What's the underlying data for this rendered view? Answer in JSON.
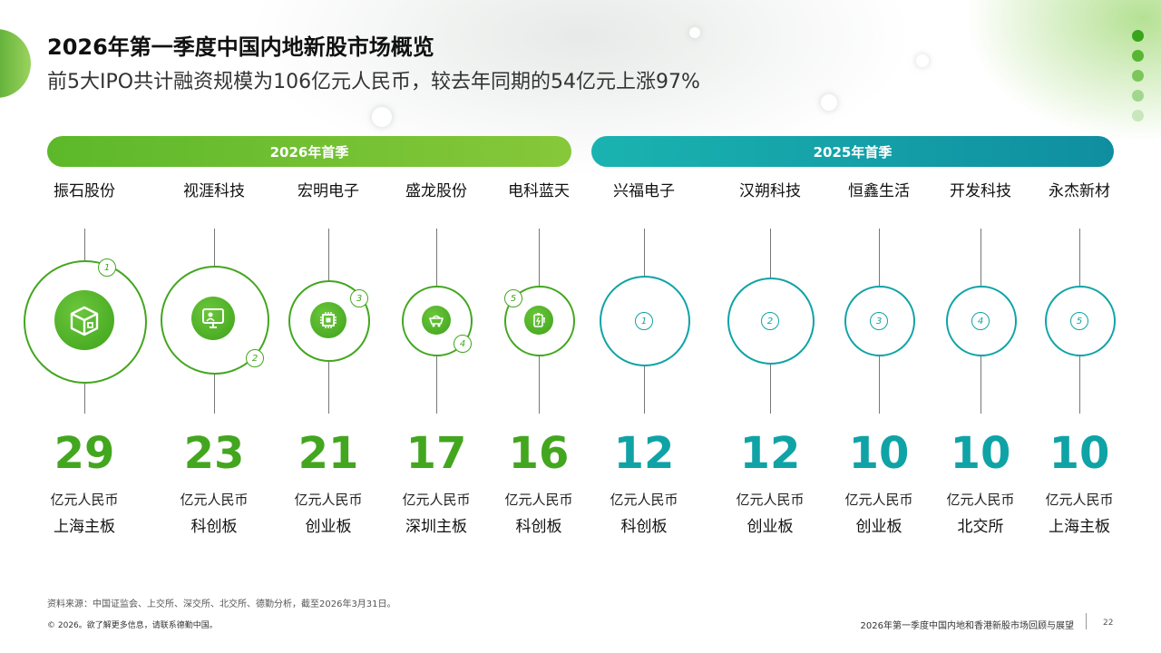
{
  "header": {
    "title": "2026年第一季度中国内地新股市场概览",
    "subtitle": "前5大IPO共计融资规模为106亿元人民币，较去年同期的54亿元上涨97%"
  },
  "bands": {
    "current": "2026年首季",
    "previous": "2025年首季"
  },
  "colors": {
    "green": "#43a61f",
    "teal": "#0fa3a6"
  },
  "companies_2026": [
    {
      "rank": "1",
      "name": "振石股份",
      "amount": "29",
      "unit": "亿元人民币",
      "board": "上海主板",
      "icon": "package-icon"
    },
    {
      "rank": "2",
      "name": "视涯科技",
      "amount": "23",
      "unit": "亿元人民币",
      "board": "科创板",
      "icon": "monitor-icon"
    },
    {
      "rank": "3",
      "name": "宏明电子",
      "amount": "21",
      "unit": "亿元人民币",
      "board": "创业板",
      "icon": "chip-icon"
    },
    {
      "rank": "4",
      "name": "盛龙股份",
      "amount": "17",
      "unit": "亿元人民币",
      "board": "深圳主板",
      "icon": "mining-cart-icon"
    },
    {
      "rank": "5",
      "name": "电科蓝天",
      "amount": "16",
      "unit": "亿元人民币",
      "board": "科创板",
      "icon": "battery-icon"
    }
  ],
  "companies_2025": [
    {
      "rank": "1",
      "name": "兴福电子",
      "amount": "12",
      "unit": "亿元人民币",
      "board": "科创板"
    },
    {
      "rank": "2",
      "name": "汉朔科技",
      "amount": "12",
      "unit": "亿元人民币",
      "board": "创业板"
    },
    {
      "rank": "3",
      "name": "恒鑫生活",
      "amount": "10",
      "unit": "亿元人民币",
      "board": "创业板"
    },
    {
      "rank": "4",
      "name": "开发科技",
      "amount": "10",
      "unit": "亿元人民币",
      "board": "北交所"
    },
    {
      "rank": "5",
      "name": "永杰新材",
      "amount": "10",
      "unit": "亿元人民币",
      "board": "上海主板"
    }
  ],
  "footer": {
    "source": "资料来源：中国证监会、上交所、深交所、北交所、德勤分析，截至2026年3月31日。",
    "copyright": "© 2026。欲了解更多信息，请联系德勤中国。",
    "doc_title": "2026年第一季度中国内地和香港新股市场回顾与展望",
    "page": "22"
  }
}
